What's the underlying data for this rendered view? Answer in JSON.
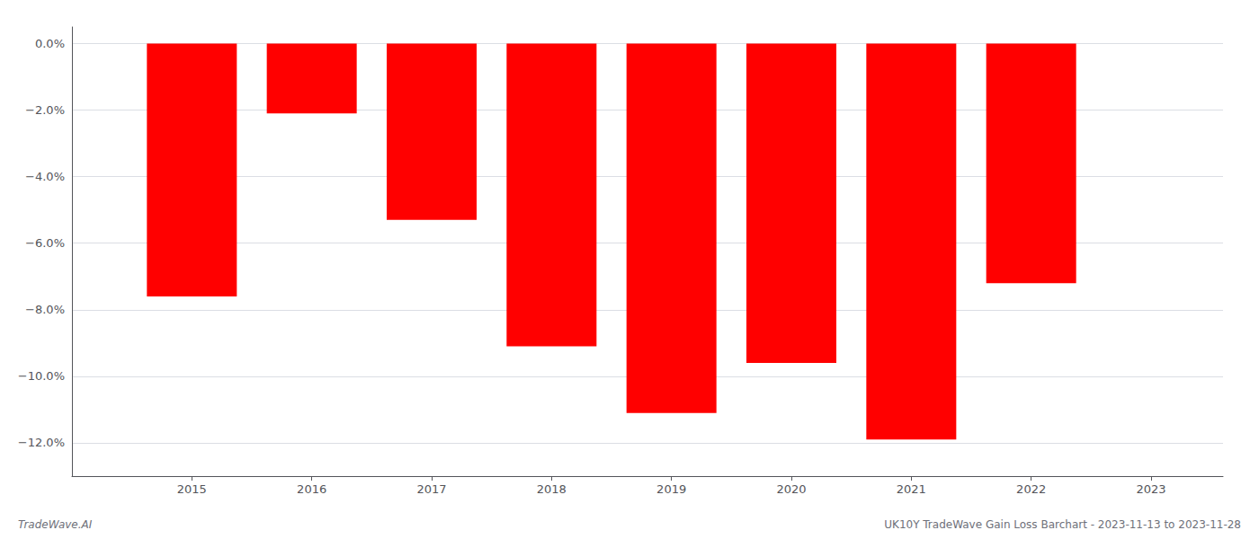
{
  "chart_data": {
    "type": "bar",
    "x": [
      2015,
      2016,
      2017,
      2018,
      2019,
      2020,
      2021,
      2022
    ],
    "values": [
      -7.6,
      -2.1,
      -5.3,
      -9.1,
      -11.1,
      -9.6,
      -11.9,
      -7.2
    ],
    "color": "#ff0000",
    "xlim": [
      2014.0,
      2023.6
    ],
    "xticks": [
      2015,
      2016,
      2017,
      2018,
      2019,
      2020,
      2021,
      2022,
      2023
    ],
    "ylim": [
      -13.0,
      0.5
    ],
    "yticks": [
      {
        "value": 0.0,
        "label": "0.0%"
      },
      {
        "value": -2.0,
        "label": "−2.0%"
      },
      {
        "value": -4.0,
        "label": "−4.0%"
      },
      {
        "value": -6.0,
        "label": "−6.0%"
      },
      {
        "value": -8.0,
        "label": "−8.0%"
      },
      {
        "value": -10.0,
        "label": "−10.0%"
      },
      {
        "value": -12.0,
        "label": "−12.0%"
      }
    ],
    "grid": true,
    "annotations": [
      "TradeWave.AI",
      "UK10Y TradeWave Gain Loss Barchart - 2023-11-13 to 2023-11-28"
    ]
  }
}
